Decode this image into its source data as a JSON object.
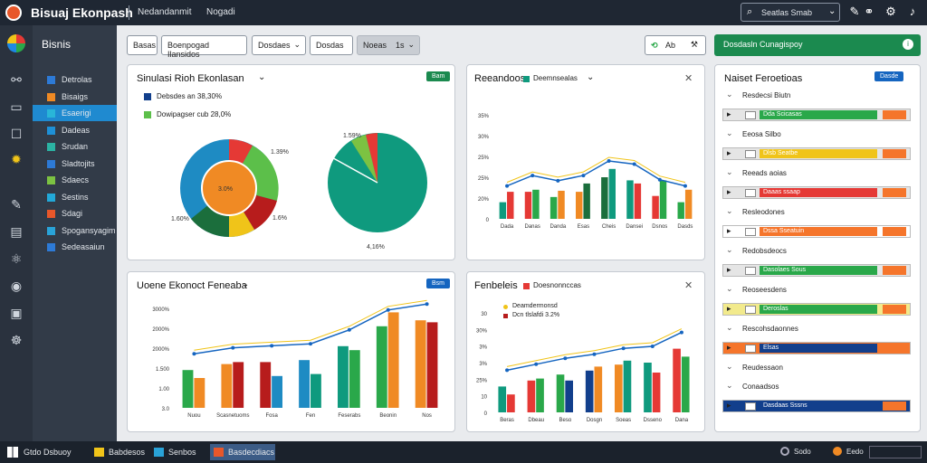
{
  "window": {
    "title": "Bisuaj Ekonpash",
    "crumb1": "Nedandanmit",
    "crumb2": "Nogadi",
    "search": "Seatlas Smab"
  },
  "sidebar": {
    "title": "Bisnis",
    "items": [
      {
        "label": "Detrolas",
        "color": "#2d7ad6"
      },
      {
        "label": "Bisaigs",
        "color": "#f08a24"
      },
      {
        "label": "Esaerigi",
        "color": "#29b6d8",
        "active": true
      },
      {
        "label": "Dadeas",
        "color": "#1e90d6"
      },
      {
        "label": "Srudan",
        "color": "#2bb3a3"
      },
      {
        "label": "Sladtojits",
        "color": "#2d7ad6"
      },
      {
        "label": "Sdaecs",
        "color": "#7cc242"
      },
      {
        "label": "Sestins",
        "color": "#22a8d8"
      },
      {
        "label": "Sdagi",
        "color": "#e8572a"
      },
      {
        "label": "Spogansyagim",
        "color": "#29a3d8"
      },
      {
        "label": "Sedeasaiun",
        "color": "#2d7ad6"
      }
    ]
  },
  "toolbar": {
    "b1": "Basas",
    "b2": "Boenpogad Ilansidos",
    "b3": "Dosdaes",
    "b4": "Dosdas",
    "b5": "Noeas",
    "b5n": "1s",
    "ab": "Ab",
    "green": "Dosdasln Cunagispoy"
  },
  "panels": {
    "p1": {
      "title": "Sinulasi Rioh Ekonlasan",
      "pill": "Bam",
      "legend": [
        "Debsdes an 38,30%",
        "Dowipagser cub 28,0%"
      ],
      "lbl1": "1.39%",
      "lbl2": "1.6%",
      "lbl3": "1.60%",
      "lbl4": "4,16%",
      "lbl5": "1.59%",
      "inner": "3.0%"
    },
    "p2": {
      "title": "Reeandoos",
      "legendtxt": "Deemnsealas"
    },
    "p3": {
      "title": "Uoene Ekonoct Feneaba",
      "pill": "Bsm"
    },
    "p4": {
      "title": "Fenbeleis",
      "legendtxt": "Doesnonnccas",
      "legend": [
        "Deamdermonsd",
        "Dcn tlslafdi 3.2%"
      ]
    }
  },
  "rightpanel": {
    "title": "Naiset Feroetioas",
    "pill": "Dasde",
    "rows": [
      {
        "type": "head",
        "label": "Resdecsi Biutn"
      },
      {
        "type": "bar",
        "label": "Dda Scicasas",
        "color": "#2aa84a",
        "bg": "#e5e5e5"
      },
      {
        "type": "head",
        "label": "Eeosa Silbo"
      },
      {
        "type": "bar",
        "label": "Dlsb Seatbe",
        "color": "#f0c419",
        "bg": "#e5e5e5"
      },
      {
        "type": "head",
        "label": "Reeads aoias"
      },
      {
        "type": "bar",
        "label": "Daaas ssaap",
        "color": "#e53935",
        "bg": "#e5e5e5"
      },
      {
        "type": "head",
        "label": "Resleodones"
      },
      {
        "type": "bar",
        "label": "Dssa Sseatuin",
        "color": "#f5752b",
        "bg": "#fff"
      },
      {
        "type": "head",
        "label": "Redobsdeocs"
      },
      {
        "type": "bar",
        "label": "Dasolaes Sous",
        "color": "#2aa84a",
        "bg": "#e5e5e5"
      },
      {
        "type": "head",
        "label": "Reoseesdens"
      },
      {
        "type": "bar",
        "label": "Deroslas",
        "color": "#2aa84a",
        "bg": "#f2ea8c"
      },
      {
        "type": "head",
        "label": "Rescohsdaonnes"
      },
      {
        "type": "bar",
        "label": "Elsas",
        "color": "#123f8c",
        "bg": "#f5752b"
      },
      {
        "type": "head",
        "label": "Reudessaon"
      },
      {
        "type": "head",
        "label": "Conaadsos"
      },
      {
        "type": "bar",
        "label": "Dasdaas Sssns",
        "color": "#123f8c",
        "bg": "#123f8c"
      }
    ]
  },
  "taskbar": {
    "start": "Gtdo Dsbuoy",
    "t1": "Babdesos",
    "t2": "Senbos",
    "t3": "Basdecdiacs",
    "s1": "Sodo",
    "s2": "Eedo"
  },
  "chart_data": [
    {
      "type": "pie",
      "categories": [
        "Orange",
        "Teal",
        "Green",
        "Red",
        "Blue",
        "Light green"
      ],
      "values": [
        40,
        20,
        12,
        10,
        10,
        8
      ]
    },
    {
      "type": "bar",
      "categories": [
        "Dada",
        "Danas",
        "Danda",
        "Esas",
        "Cheis",
        "Dansei",
        "Dsnos",
        "Dasds"
      ],
      "yticks": [
        "0",
        "20%",
        "25%",
        "25%",
        "30%",
        "35%"
      ],
      "series": [
        {
          "values": [
            16,
            26,
            21,
            26,
            40,
            37,
            22,
            16
          ]
        },
        {
          "values": [
            26,
            28,
            27,
            34,
            48,
            34,
            37,
            28
          ]
        }
      ]
    },
    {
      "type": "bar",
      "categories": [
        "Nuou",
        "Scasnetuoms",
        "Fosa",
        "Fen",
        "Feserabs",
        "Beonin",
        "Nos"
      ],
      "yticks": [
        "3.0",
        "1.00",
        "1.500",
        "2000%",
        "2000%",
        "3000%"
      ],
      "series": [
        {
          "values": [
            38,
            44,
            46,
            48,
            62,
            82,
            88
          ]
        },
        {
          "values": [
            30,
            46,
            32,
            34,
            58,
            96,
            86
          ]
        }
      ]
    },
    {
      "type": "bar",
      "categories": [
        "Beras",
        "Dbeau",
        "Beso",
        "Dosgn",
        "Soeas",
        "Dsseno",
        "Dana"
      ],
      "yticks": [
        "0",
        "10",
        "25%",
        "3%",
        "3%",
        "30%",
        "30"
      ],
      "series": [
        {
          "values": [
            26,
            32,
            38,
            42,
            48,
            50,
            64
          ]
        },
        {
          "values": [
            18,
            34,
            32,
            46,
            52,
            40,
            56
          ]
        }
      ]
    }
  ]
}
